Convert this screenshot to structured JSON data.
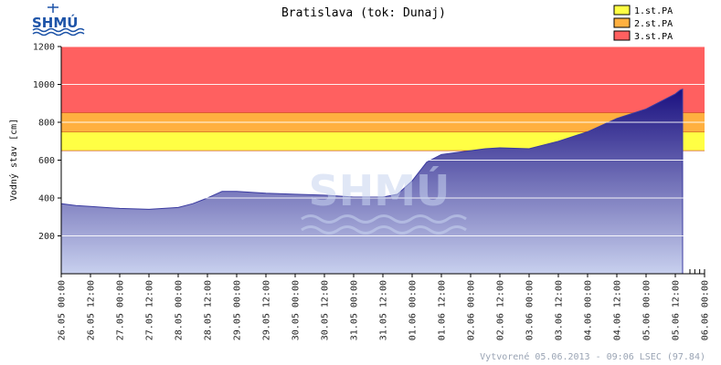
{
  "header": {
    "logo_text": "SHMÚ",
    "watermark_text": "SHMÚ"
  },
  "chart_data": {
    "type": "area",
    "title": "Bratislava (tok: Dunaj)",
    "ylabel": "Vodný stav [cm]",
    "xlabel": "",
    "ylim": [
      0,
      1200
    ],
    "yticks": [
      200,
      400,
      600,
      800,
      1000,
      1200
    ],
    "grid": true,
    "legend_position": "top-right",
    "x_tick_labels": [
      "26.05 00:00",
      "26.05 12:00",
      "27.05 00:00",
      "27.05 12:00",
      "28.05 00:00",
      "28.05 12:00",
      "29.05 00:00",
      "29.05 12:00",
      "30.05 00:00",
      "30.05 12:00",
      "31.05 00:00",
      "31.05 12:00",
      "01.06 00:00",
      "01.06 12:00",
      "02.06 00:00",
      "02.06 12:00",
      "03.06 00:00",
      "03.06 12:00",
      "04.06 00:00",
      "04.06 12:00",
      "05.06 00:00",
      "05.06 12:00",
      "06.06 00:00"
    ],
    "x_range_hours": [
      0,
      264
    ],
    "series": [
      {
        "x_hours": [
          0,
          6,
          12,
          24,
          36,
          48,
          54,
          60,
          66,
          72,
          84,
          96,
          108,
          120,
          132,
          138,
          144,
          150,
          156,
          168,
          174,
          180,
          192,
          204,
          216,
          228,
          240,
          252,
          254,
          255
        ],
        "values": [
          370,
          360,
          355,
          345,
          340,
          350,
          370,
          400,
          435,
          435,
          425,
          420,
          415,
          405,
          405,
          420,
          490,
          590,
          630,
          650,
          660,
          665,
          660,
          700,
          750,
          820,
          870,
          950,
          970,
          975
        ]
      }
    ],
    "thresholds": [
      {
        "name": "1.st.PA",
        "value": 650,
        "color": "#ffff44"
      },
      {
        "name": "2.st.PA",
        "value": 750,
        "color": "#ffb040"
      },
      {
        "name": "3.st.PA",
        "value": 850,
        "color": "#ff6060"
      }
    ],
    "area_color_top": "#1a1080",
    "area_color_bottom": "#c8d0ee"
  },
  "footer": {
    "created_text": "Vytvorené 05.06.2013 - 09:06 LSEC (97.84)"
  }
}
